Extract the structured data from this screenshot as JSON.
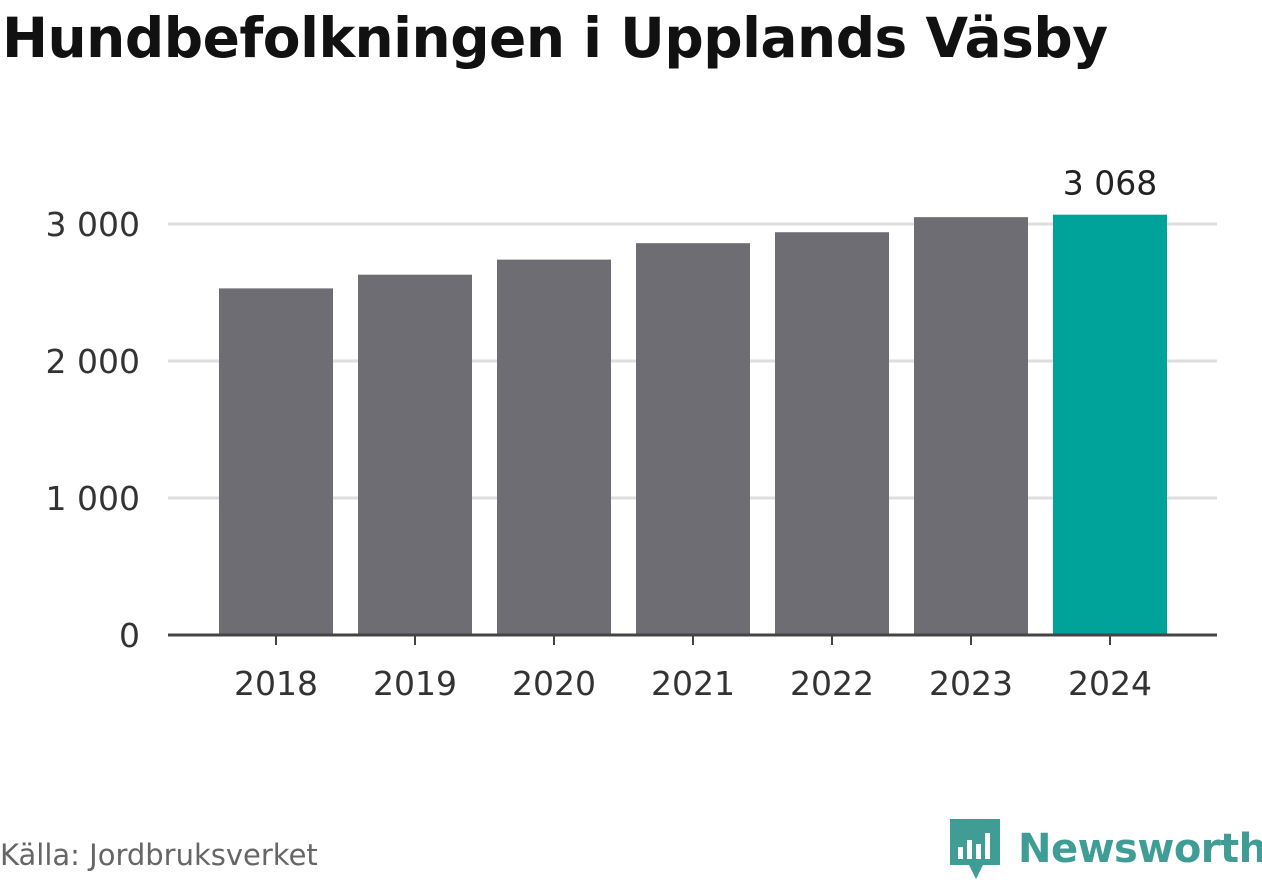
{
  "title": "Hundbefolkningen i Upplands Väsby",
  "source": "Källa: Jordbruksverket",
  "brand": {
    "name": "Newsworthy",
    "icon": "bar-chart-icon",
    "color": "#3f9d96"
  },
  "chart_data": {
    "type": "bar",
    "title": "Hundbefolkningen i Upplands Väsby",
    "xlabel": "",
    "ylabel": "",
    "categories": [
      "2018",
      "2019",
      "2020",
      "2021",
      "2022",
      "2023",
      "2024"
    ],
    "values": [
      2530,
      2630,
      2740,
      2860,
      2940,
      3050,
      3068
    ],
    "ylim": [
      0,
      3300
    ],
    "yticks": [
      0,
      1000,
      2000,
      3000
    ],
    "ytick_labels": [
      "0",
      "1 000",
      "2 000",
      "3 000"
    ],
    "grid": true,
    "colors": {
      "default": "#6e6d74",
      "highlight": "#00a39a"
    },
    "highlight_index": 6,
    "data_labels": [
      {
        "index": 6,
        "text": "3 068"
      }
    ]
  }
}
